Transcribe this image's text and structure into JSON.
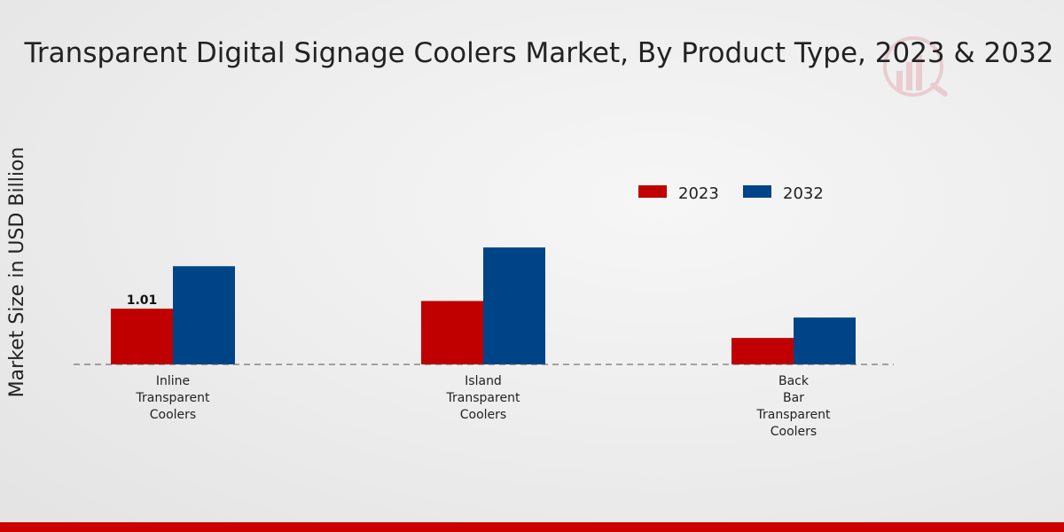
{
  "chart_data": {
    "type": "bar",
    "title": "Transparent Digital Signage Coolers Market, By Product Type, 2023 & 2032",
    "xlabel": "",
    "ylabel": "Market Size in USD Billion",
    "categories": [
      [
        "Inline",
        "Transparent",
        "Coolers"
      ],
      [
        "Island",
        "Transparent",
        "Coolers"
      ],
      [
        "Back",
        "Bar",
        "Transparent",
        "Coolers"
      ]
    ],
    "series": [
      {
        "name": "2023",
        "color": "#c00000",
        "values": [
          1.01,
          1.15,
          0.48
        ]
      },
      {
        "name": "2032",
        "color": "#004488",
        "values": [
          1.78,
          2.12,
          0.85
        ]
      }
    ],
    "data_labels": [
      {
        "series": 0,
        "category": 0,
        "text": "1.01"
      }
    ],
    "ylim": [
      0,
      4.5
    ],
    "legend_position": "top-right",
    "grid": false,
    "baseline_style": "dashed"
  },
  "branding": {
    "bottom_bar_color": "#cc0000",
    "watermark_icon": "bar-chart-logo-icon"
  }
}
